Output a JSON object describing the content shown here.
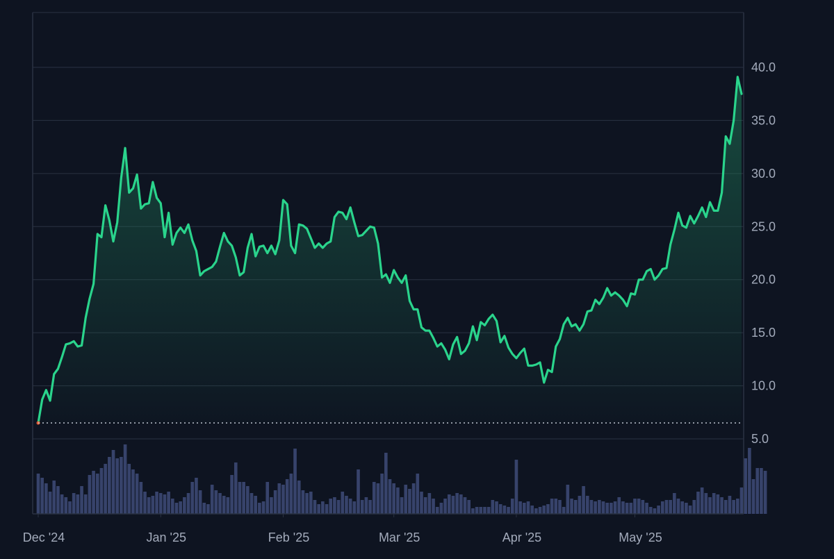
{
  "colors": {
    "background": "#0e1421",
    "grid": "#2a3242",
    "axis_text": "#a3abbb",
    "price_line": "#2ad48c",
    "area_fill_top": "#1f7a58",
    "volume_bar": "#3a4670",
    "baseline": "#cfd6e2",
    "start_marker": "#e0603a"
  },
  "chart_data": {
    "type": "area",
    "title": "",
    "xlabel": "",
    "ylabel": "",
    "ylim": [
      5.0,
      45.0
    ],
    "y_ticks": [
      5.0,
      10.0,
      15.0,
      20.0,
      25.0,
      30.0,
      35.0,
      40.0
    ],
    "y_axis_position": "right",
    "grid": "horizontal",
    "x_tick_labels": [
      "Dec '24",
      "Jan '25",
      "Feb '25",
      "Mar '25",
      "Apr '25",
      "May '25"
    ],
    "x_tick_day_index": [
      0,
      31,
      62,
      90,
      121,
      151
    ],
    "baseline_value": 6.5,
    "series": [
      {
        "kind": "price",
        "values": [
          6.5,
          8.7,
          9.6,
          8.6,
          11.1,
          11.6,
          12.7,
          13.9,
          14.0,
          14.2,
          13.7,
          13.8,
          16.4,
          18.2,
          19.6,
          24.3,
          24.0,
          27.0,
          25.6,
          23.6,
          25.4,
          29.6,
          32.4,
          28.2,
          28.6,
          29.9,
          26.7,
          27.1,
          27.2,
          29.2,
          27.7,
          27.2,
          24.0,
          26.3,
          23.3,
          24.4,
          24.9,
          24.4,
          25.2,
          23.7,
          22.7,
          20.4,
          20.8,
          21.0,
          21.2,
          21.7,
          23.1,
          24.4,
          23.6,
          23.2,
          22.1,
          20.4,
          20.7,
          23.0,
          24.3,
          22.2,
          23.1,
          23.2,
          22.5,
          23.2,
          22.4,
          23.7,
          27.5,
          27.1,
          23.2,
          22.5,
          25.2,
          25.1,
          24.8,
          23.9,
          23.0,
          23.4,
          23.0,
          23.4,
          23.6,
          25.9,
          26.4,
          26.3,
          25.7,
          26.8,
          25.4,
          24.1,
          24.2,
          24.6,
          25.0,
          24.9,
          23.4,
          20.2,
          20.5,
          19.7,
          20.9,
          20.2,
          19.7,
          20.4,
          18.0,
          17.2,
          17.2,
          15.5,
          15.2,
          15.2,
          14.5,
          13.7,
          14.0,
          13.4,
          12.5,
          13.9,
          14.6,
          13.0,
          13.3,
          14.0,
          15.6,
          14.3,
          16.0,
          15.7,
          16.3,
          16.7,
          16.1,
          14.1,
          14.7,
          13.6,
          13.0,
          12.6,
          13.1,
          13.5,
          11.9,
          11.9,
          12.0,
          12.2,
          10.3,
          11.5,
          11.3,
          13.7,
          14.4,
          15.8,
          16.4,
          15.6,
          15.8,
          15.2,
          15.8,
          17.0,
          17.1,
          18.1,
          17.7,
          18.3,
          19.2,
          18.5,
          18.8,
          18.5,
          18.1,
          17.5,
          18.7,
          18.6,
          20.0,
          20.0,
          20.8,
          21.0,
          20.0,
          20.4,
          21.0,
          21.1,
          23.3,
          24.7,
          26.3,
          25.1,
          24.9,
          26.0,
          25.3,
          26.0,
          26.8,
          25.9,
          27.3,
          26.5,
          26.5,
          28.2,
          33.5,
          32.8,
          35.0,
          39.1,
          37.5
        ]
      },
      {
        "kind": "volume",
        "values": [
          0.58,
          0.52,
          0.44,
          0.32,
          0.48,
          0.4,
          0.28,
          0.24,
          0.18,
          0.3,
          0.28,
          0.4,
          0.28,
          0.56,
          0.62,
          0.58,
          0.66,
          0.72,
          0.82,
          0.92,
          0.8,
          0.82,
          1.0,
          0.72,
          0.64,
          0.58,
          0.46,
          0.32,
          0.24,
          0.26,
          0.32,
          0.3,
          0.28,
          0.32,
          0.22,
          0.16,
          0.18,
          0.24,
          0.3,
          0.46,
          0.52,
          0.34,
          0.16,
          0.14,
          0.42,
          0.34,
          0.3,
          0.26,
          0.24,
          0.56,
          0.74,
          0.46,
          0.46,
          0.4,
          0.3,
          0.26,
          0.16,
          0.18,
          0.46,
          0.24,
          0.34,
          0.44,
          0.42,
          0.5,
          0.58,
          0.94,
          0.48,
          0.34,
          0.3,
          0.32,
          0.2,
          0.14,
          0.18,
          0.14,
          0.22,
          0.24,
          0.2,
          0.32,
          0.26,
          0.22,
          0.18,
          0.64,
          0.2,
          0.24,
          0.2,
          0.46,
          0.44,
          0.58,
          0.88,
          0.5,
          0.44,
          0.38,
          0.24,
          0.42,
          0.36,
          0.44,
          0.58,
          0.32,
          0.24,
          0.3,
          0.22,
          0.1,
          0.16,
          0.22,
          0.28,
          0.26,
          0.3,
          0.28,
          0.24,
          0.2,
          0.08,
          0.1,
          0.1,
          0.1,
          0.1,
          0.2,
          0.18,
          0.14,
          0.12,
          0.1,
          0.22,
          0.78,
          0.18,
          0.16,
          0.18,
          0.12,
          0.08,
          0.1,
          0.12,
          0.14,
          0.22,
          0.22,
          0.2,
          0.1,
          0.42,
          0.22,
          0.2,
          0.26,
          0.4,
          0.26,
          0.2,
          0.18,
          0.2,
          0.18,
          0.16,
          0.16,
          0.18,
          0.24,
          0.18,
          0.16,
          0.16,
          0.22,
          0.22,
          0.2,
          0.16,
          0.1,
          0.08,
          0.12,
          0.18,
          0.2,
          0.2,
          0.3,
          0.22,
          0.18,
          0.16,
          0.12,
          0.2,
          0.32,
          0.38,
          0.3,
          0.24,
          0.3,
          0.28,
          0.24,
          0.2,
          0.26,
          0.2,
          0.22,
          0.38,
          0.8,
          0.95,
          0.5,
          0.66,
          0.66,
          0.62
        ]
      }
    ]
  }
}
